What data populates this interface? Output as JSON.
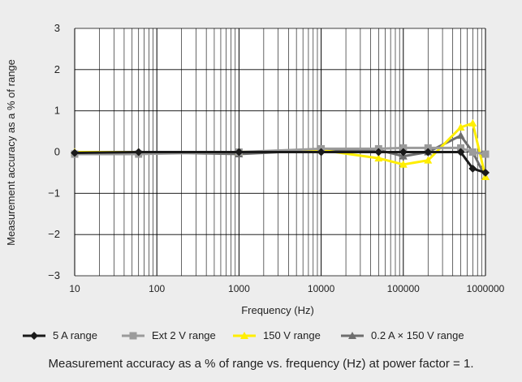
{
  "chart_data": {
    "type": "line",
    "xlabel": "Frequency (Hz)",
    "ylabel": "Measurement accuracy as a % of range",
    "x_scale": "log",
    "xlim": [
      10,
      1000000
    ],
    "ylim": [
      -3,
      3
    ],
    "x_ticks": [
      "10",
      "100",
      "1000",
      "10000",
      "100000",
      "1000000"
    ],
    "y_ticks": [
      "3",
      "2",
      "1",
      "0",
      "−1",
      "−2",
      "−3"
    ],
    "grid": true,
    "legend_position": "bottom",
    "series": [
      {
        "name": "5 A range",
        "color": "#1a1a1a",
        "marker": "diamond",
        "points": [
          [
            10,
            -0.02
          ],
          [
            60,
            0.0
          ],
          [
            1000,
            0.0
          ],
          [
            10000,
            0.0
          ],
          [
            50000,
            0.0
          ],
          [
            100000,
            0.0
          ],
          [
            200000,
            0.0
          ],
          [
            500000,
            0.0
          ],
          [
            700000,
            -0.4
          ],
          [
            1000000,
            -0.5
          ]
        ]
      },
      {
        "name": "Ext 2 V range",
        "color": "#9b9b9b",
        "marker": "square",
        "points": [
          [
            10,
            -0.05
          ],
          [
            60,
            -0.05
          ],
          [
            1000,
            0.0
          ],
          [
            10000,
            0.08
          ],
          [
            50000,
            0.08
          ],
          [
            100000,
            0.1
          ],
          [
            200000,
            0.1
          ],
          [
            500000,
            0.1
          ],
          [
            700000,
            0.0
          ],
          [
            1000000,
            -0.05
          ]
        ]
      },
      {
        "name": "150 V range",
        "color": "#ffee00",
        "marker": "triangle",
        "points": [
          [
            10,
            0.0
          ],
          [
            60,
            0.0
          ],
          [
            1000,
            0.0
          ],
          [
            10000,
            0.05
          ],
          [
            50000,
            -0.15
          ],
          [
            100000,
            -0.3
          ],
          [
            200000,
            -0.2
          ],
          [
            500000,
            0.6
          ],
          [
            700000,
            0.7
          ],
          [
            1000000,
            -0.6
          ]
        ]
      },
      {
        "name": "0.2 A × 150 V range",
        "color": "#6e6e6e",
        "marker": "triangle",
        "points": [
          [
            10,
            0.0
          ],
          [
            60,
            0.0
          ],
          [
            1000,
            -0.05
          ],
          [
            10000,
            0.05
          ],
          [
            50000,
            0.05
          ],
          [
            100000,
            -0.1
          ],
          [
            200000,
            0.0
          ],
          [
            500000,
            0.4
          ],
          [
            700000,
            0.0
          ],
          [
            1000000,
            -0.6
          ]
        ]
      }
    ]
  },
  "caption": "Measurement accuracy as a % of range vs. frequency (Hz) at power factor = 1."
}
